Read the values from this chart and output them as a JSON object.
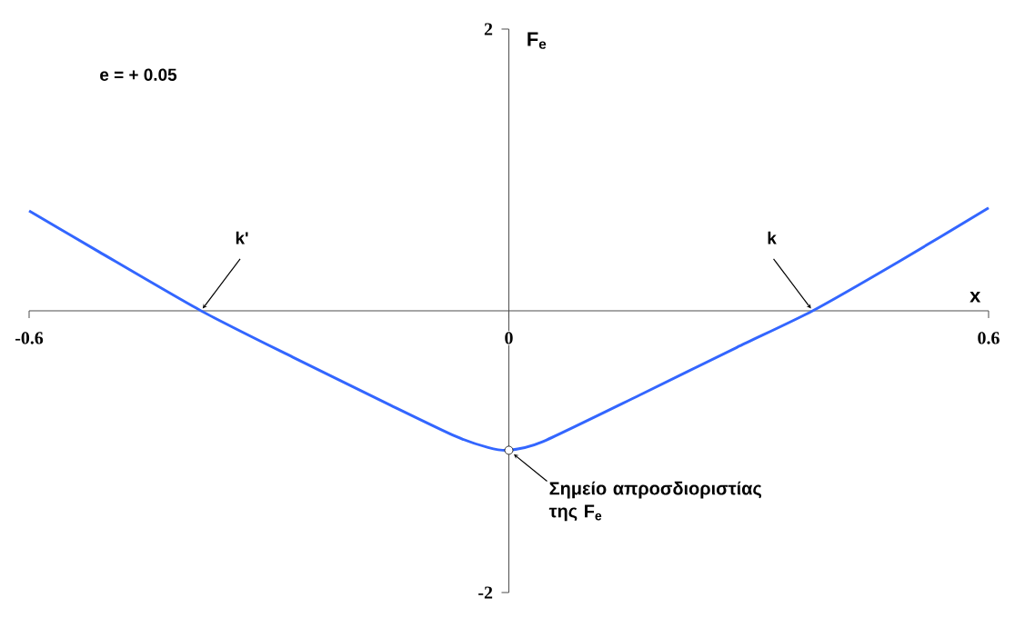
{
  "chart_data": {
    "type": "line",
    "xlabel": "x",
    "ylabel": "F$_{e}$",
    "marker": "none",
    "line_style": "solid",
    "x": [
      -0.6,
      -0.513,
      -0.385,
      -0.27,
      -0.148,
      -0.067,
      -0.026,
      0,
      0.042,
      0.163,
      0.285,
      0.38,
      0.488,
      0.6
    ],
    "series": [
      {
        "color": "#3366ff",
        "values": [
          0.71,
          0.42,
          0,
          -0.33,
          -0.67,
          -0.89,
          -0.97,
          -0.99,
          -0.93,
          -0.6,
          -0.26,
          0,
          0.35,
          0.73
        ]
      },
      {
        "type": "scatter",
        "marker": "circle",
        "color": "#ffffff",
        "x": [
          0
        ],
        "values": [
          -0.99
        ]
      }
    ],
    "xlim": [
      -0.6,
      0.6
    ],
    "ylim": [
      -2,
      2
    ],
    "xticks": [
      -0.6,
      0,
      0.6
    ],
    "yticks": [
      -2,
      2
    ],
    "annotations": [
      "e = + 0.05",
      {
        "text": "k'",
        "x": -0.385,
        "y": 0
      },
      {
        "text": "k",
        "x": 0.38,
        "y": 0
      },
      {
        "text": "Σημείο απροσδιοριστίας της F$_{e}$",
        "x": 0,
        "y": -0.99
      }
    ]
  }
}
